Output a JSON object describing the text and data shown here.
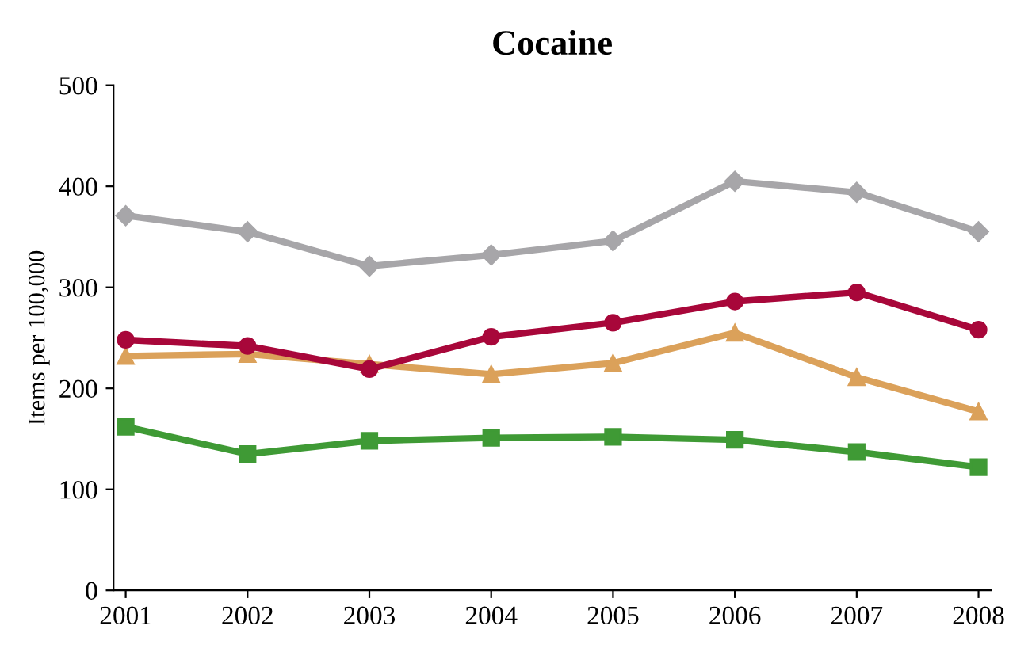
{
  "chart_data": {
    "type": "line",
    "title": "Cocaine",
    "ylabel": "Items per 100,000",
    "categories": [
      "2001",
      "2002",
      "2003",
      "2004",
      "2005",
      "2006",
      "2007",
      "2008"
    ],
    "series": [
      {
        "color": "#a7a6a9",
        "marker": "diamond",
        "values": [
          371,
          355,
          321,
          332,
          346,
          405,
          394,
          355
        ]
      },
      {
        "color": "#a8073a",
        "marker": "circle",
        "values": [
          248,
          242,
          219,
          251,
          265,
          286,
          295,
          258
        ]
      },
      {
        "color": "#dba15a",
        "marker": "triangle",
        "values": [
          232,
          234,
          224,
          214,
          225,
          255,
          211,
          177
        ]
      },
      {
        "color": "#3f9a35",
        "marker": "square",
        "values": [
          162,
          135,
          148,
          151,
          152,
          149,
          137,
          122
        ]
      }
    ],
    "ylim": [
      0,
      500
    ],
    "yticks": [
      0,
      100,
      200,
      300,
      400,
      500
    ],
    "grid": false,
    "legend": false
  }
}
